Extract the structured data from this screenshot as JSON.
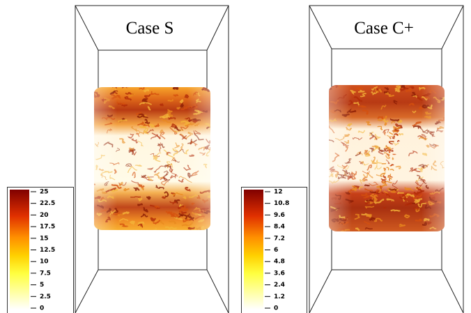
{
  "panels": [
    {
      "title": "Case S",
      "colorbar": {
        "ticks": [
          0,
          2.5,
          5,
          7.5,
          10,
          12.5,
          15,
          17.5,
          20,
          22.5,
          25
        ]
      }
    },
    {
      "title": "Case C+",
      "colorbar": {
        "ticks": [
          0,
          1.2,
          2.4,
          3.6,
          4.8,
          6,
          7.2,
          8.4,
          9.6,
          10.8,
          12
        ]
      }
    }
  ]
}
